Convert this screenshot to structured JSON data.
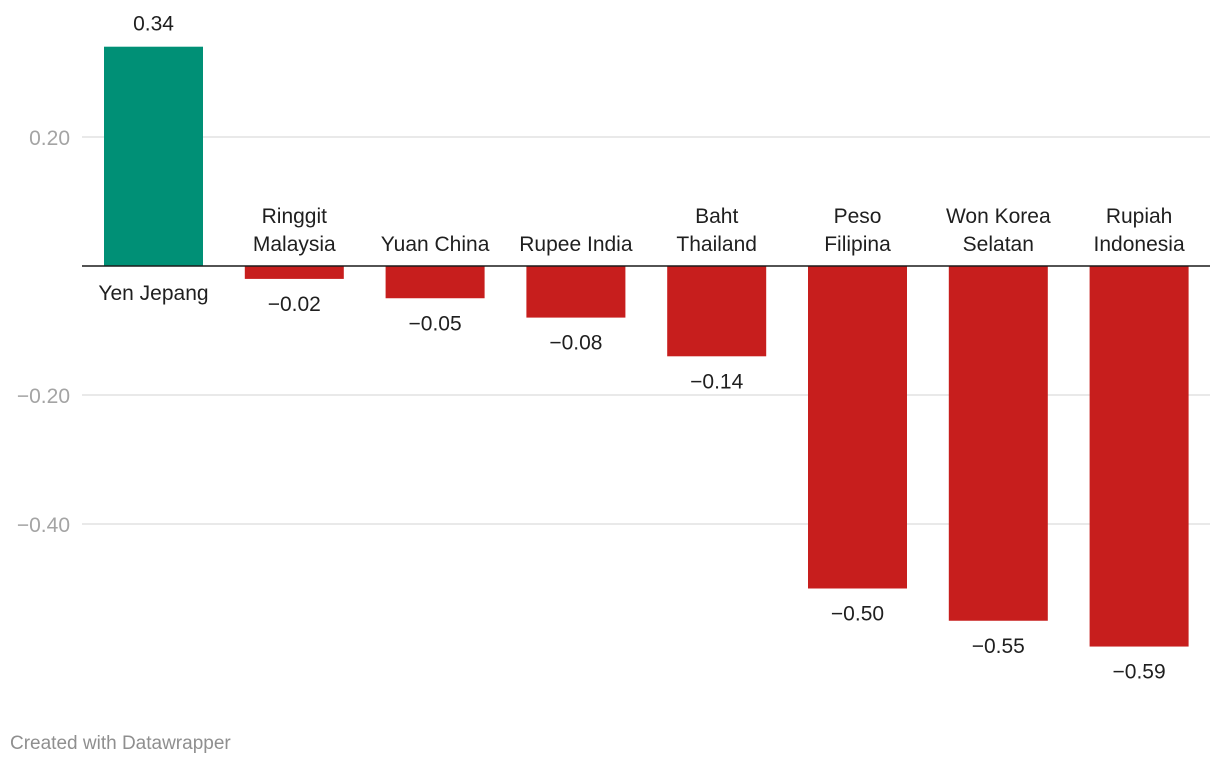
{
  "chart_data": {
    "type": "bar",
    "categories": [
      "Yen Jepang",
      "Ringgit Malaysia",
      "Yuan China",
      "Rupee India",
      "Baht Thailand",
      "Peso Filipina",
      "Won Korea Selatan",
      "Rupiah Indonesia"
    ],
    "category_label_lines": [
      [
        "Yen Jepang"
      ],
      [
        "Ringgit",
        "Malaysia"
      ],
      [
        "Yuan China"
      ],
      [
        "Rupee India"
      ],
      [
        "Baht",
        "Thailand"
      ],
      [
        "Peso",
        "Filipina"
      ],
      [
        "Won Korea",
        "Selatan"
      ],
      [
        "Rupiah",
        "Indonesia"
      ]
    ],
    "values": [
      0.34,
      -0.02,
      -0.05,
      -0.08,
      -0.14,
      -0.5,
      -0.55,
      -0.59
    ],
    "value_labels": [
      "0.34",
      "−0.02",
      "−0.05",
      "−0.08",
      "−0.14",
      "−0.50",
      "−0.55",
      "−0.59"
    ],
    "yticks": [
      0.2,
      -0.2,
      -0.4
    ],
    "ytick_labels": [
      "0.20",
      "−0.20",
      "−0.40"
    ],
    "ylim": [
      -0.65,
      0.37
    ],
    "grid": true,
    "colors": {
      "positive": "#009076",
      "negative": "#c71e1d"
    },
    "title": "",
    "xlabel": "",
    "ylabel": ""
  },
  "footer": {
    "credit": "Created with Datawrapper"
  }
}
